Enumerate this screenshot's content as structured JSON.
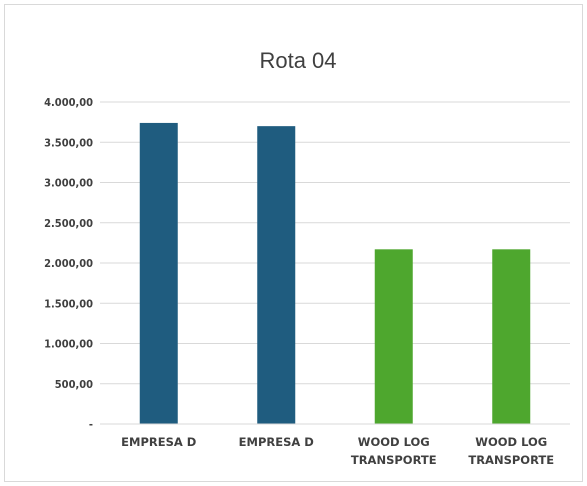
{
  "chart_data": {
    "type": "bar",
    "title": "Rota 04",
    "xlabel": "",
    "ylabel": "",
    "categories": [
      [
        "EMPRESA D"
      ],
      [
        "EMPRESA D"
      ],
      [
        "WOOD LOG",
        "TRANSPORTE"
      ],
      [
        "WOOD LOG",
        "TRANSPORTE"
      ]
    ],
    "values": [
      3740,
      3700,
      2170,
      2170
    ],
    "bar_colors": [
      "#1f5c7f",
      "#1f5c7f",
      "#4ea72e",
      "#4ea72e"
    ],
    "ylim": [
      0,
      4000
    ],
    "yticks": [
      0,
      500,
      1000,
      1500,
      2000,
      2500,
      3000,
      3500,
      4000
    ],
    "ytick_labels": [
      "-",
      "500,00",
      "1.000,00",
      "1.500,00",
      "2.000,00",
      "2.500,00",
      "3.000,00",
      "3.500,00",
      "4.000,00"
    ],
    "grid": true,
    "gridline_color": "#d9d9d9",
    "legend": "none"
  }
}
